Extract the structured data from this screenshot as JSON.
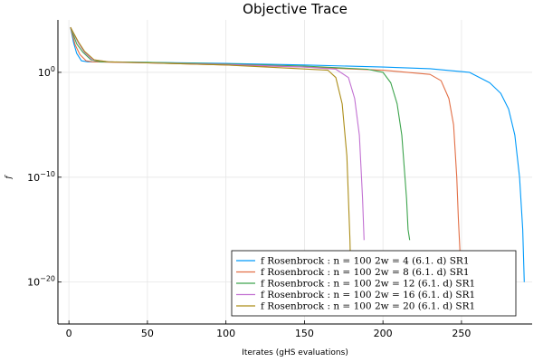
{
  "chart_data": {
    "type": "line",
    "title": "Objective Trace",
    "xlabel": "Iterates (gHS evaluations)",
    "ylabel": "f",
    "xlim": [
      -7,
      295
    ],
    "yscale": "log10",
    "ylim_exponent": [
      -24,
      5
    ],
    "x_ticks": [
      0,
      50,
      100,
      150,
      200,
      250
    ],
    "y_ticks_exponent": [
      0,
      -10,
      -20
    ],
    "y_tick_labels": [
      {
        "base": "10",
        "exp": "0"
      },
      {
        "base": "10",
        "exp": "−10"
      },
      {
        "base": "10",
        "exp": "−20"
      }
    ],
    "grid": true,
    "legend_position": "bottom-right",
    "series": [
      {
        "name": "f   Rosenbrock :  n = 100   2w = 4   (6.1. d)    SR1",
        "color": "#009AFA",
        "points": [
          [
            1,
            4.3
          ],
          [
            3,
            2.8
          ],
          [
            5,
            1.8
          ],
          [
            8,
            1.1
          ],
          [
            12,
            1.0
          ],
          [
            50,
            0.95
          ],
          [
            100,
            0.85
          ],
          [
            150,
            0.7
          ],
          [
            200,
            0.5
          ],
          [
            230,
            0.35
          ],
          [
            255,
            0.0
          ],
          [
            268,
            -1.0
          ],
          [
            275,
            -2.0
          ],
          [
            280,
            -3.5
          ],
          [
            284,
            -6
          ],
          [
            287,
            -10
          ],
          [
            289,
            -15
          ],
          [
            290,
            -20
          ]
        ]
      },
      {
        "name": "f   Rosenbrock :  n = 100   2w = 8   (6.1. d)    SR1",
        "color": "#E26F46",
        "points": [
          [
            1,
            4.3
          ],
          [
            4,
            2.6
          ],
          [
            7,
            1.7
          ],
          [
            11,
            1.1
          ],
          [
            15,
            1.0
          ],
          [
            50,
            0.9
          ],
          [
            100,
            0.7
          ],
          [
            150,
            0.5
          ],
          [
            200,
            0.2
          ],
          [
            230,
            -0.2
          ],
          [
            237,
            -0.8
          ],
          [
            242,
            -2.5
          ],
          [
            245,
            -5
          ],
          [
            247,
            -10
          ],
          [
            248,
            -14
          ],
          [
            249,
            -17
          ]
        ]
      },
      {
        "name": "f   Rosenbrock :  n = 100   2w = 12   (6.1. d)    SR1",
        "color": "#3DA44D",
        "points": [
          [
            1,
            4.3
          ],
          [
            5,
            2.7
          ],
          [
            9,
            1.9
          ],
          [
            14,
            1.2
          ],
          [
            20,
            1.0
          ],
          [
            50,
            0.95
          ],
          [
            100,
            0.8
          ],
          [
            150,
            0.6
          ],
          [
            190,
            0.3
          ],
          [
            200,
            0.0
          ],
          [
            205,
            -1.0
          ],
          [
            209,
            -3.0
          ],
          [
            212,
            -6
          ],
          [
            215,
            -12
          ],
          [
            216,
            -15
          ],
          [
            217,
            -16
          ]
        ]
      },
      {
        "name": "f   Rosenbrock :  n = 100   2w = 16   (6.1. d)    SR1",
        "color": "#C271D2",
        "points": [
          [
            1,
            4.3
          ],
          [
            6,
            2.8
          ],
          [
            10,
            1.9
          ],
          [
            15,
            1.2
          ],
          [
            25,
            1.0
          ],
          [
            50,
            0.9
          ],
          [
            100,
            0.75
          ],
          [
            150,
            0.5
          ],
          [
            170,
            0.3
          ],
          [
            178,
            -0.5
          ],
          [
            182,
            -2.5
          ],
          [
            185,
            -6
          ],
          [
            187,
            -12
          ],
          [
            188,
            -16
          ]
        ]
      },
      {
        "name": "f   Rosenbrock :  n = 100   2w = 20   (6.1. d)    SR1",
        "color": "#AC8D18",
        "points": [
          [
            1,
            4.3
          ],
          [
            6,
            2.9
          ],
          [
            10,
            2.0
          ],
          [
            16,
            1.2
          ],
          [
            25,
            1.0
          ],
          [
            50,
            0.9
          ],
          [
            100,
            0.7
          ],
          [
            140,
            0.4
          ],
          [
            165,
            0.2
          ],
          [
            170,
            -0.5
          ],
          [
            174,
            -3
          ],
          [
            177,
            -8
          ],
          [
            179,
            -16
          ],
          [
            180,
            -23
          ]
        ]
      }
    ]
  }
}
